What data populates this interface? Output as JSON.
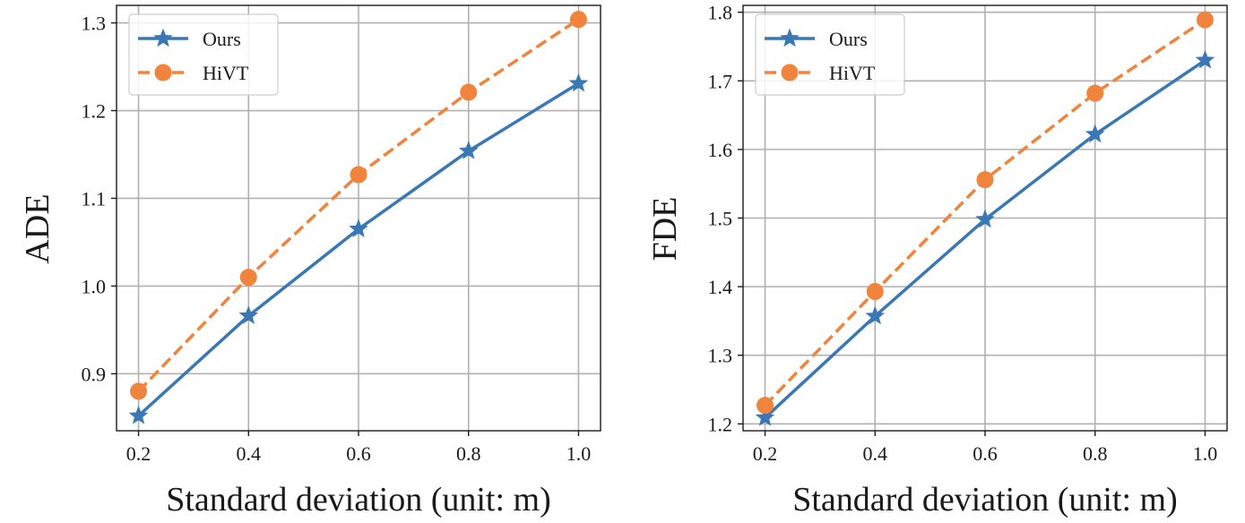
{
  "chart_data": [
    {
      "type": "line",
      "title": "",
      "xlabel": "Standard deviation (unit: m)",
      "ylabel": "ADE",
      "x": [
        0.2,
        0.4,
        0.6,
        0.8,
        1.0
      ],
      "x_ticks": [
        "0.2",
        "0.4",
        "0.6",
        "0.8",
        "1.0"
      ],
      "xlim": [
        0.16,
        1.04
      ],
      "y_ticks": [
        "0.9",
        "1.0",
        "1.1",
        "1.2",
        "1.3"
      ],
      "ylim": [
        0.835,
        1.32
      ],
      "grid": true,
      "legend_position": "top-left",
      "series": [
        {
          "name": "Ours",
          "values": [
            0.852,
            0.966,
            1.065,
            1.154,
            1.231
          ],
          "color": "#3a78b5",
          "marker": "star",
          "linestyle": "solid"
        },
        {
          "name": "HiVT",
          "values": [
            0.88,
            1.01,
            1.127,
            1.221,
            1.304
          ],
          "color": "#f0843c",
          "marker": "circle",
          "linestyle": "dashed"
        }
      ]
    },
    {
      "type": "line",
      "title": "",
      "xlabel": "Standard deviation (unit: m)",
      "ylabel": "FDE",
      "x": [
        0.2,
        0.4,
        0.6,
        0.8,
        1.0
      ],
      "x_ticks": [
        "0.2",
        "0.4",
        "0.6",
        "0.8",
        "1.0"
      ],
      "xlim": [
        0.16,
        1.04
      ],
      "y_ticks": [
        "1.2",
        "1.3",
        "1.4",
        "1.5",
        "1.6",
        "1.7",
        "1.8"
      ],
      "ylim": [
        1.19,
        1.81
      ],
      "grid": true,
      "legend_position": "top-left",
      "series": [
        {
          "name": "Ours",
          "values": [
            1.209,
            1.357,
            1.498,
            1.622,
            1.73
          ],
          "color": "#3a78b5",
          "marker": "star",
          "linestyle": "solid"
        },
        {
          "name": "HiVT",
          "values": [
            1.227,
            1.393,
            1.556,
            1.682,
            1.789
          ],
          "color": "#f0843c",
          "marker": "circle",
          "linestyle": "dashed"
        }
      ]
    }
  ]
}
